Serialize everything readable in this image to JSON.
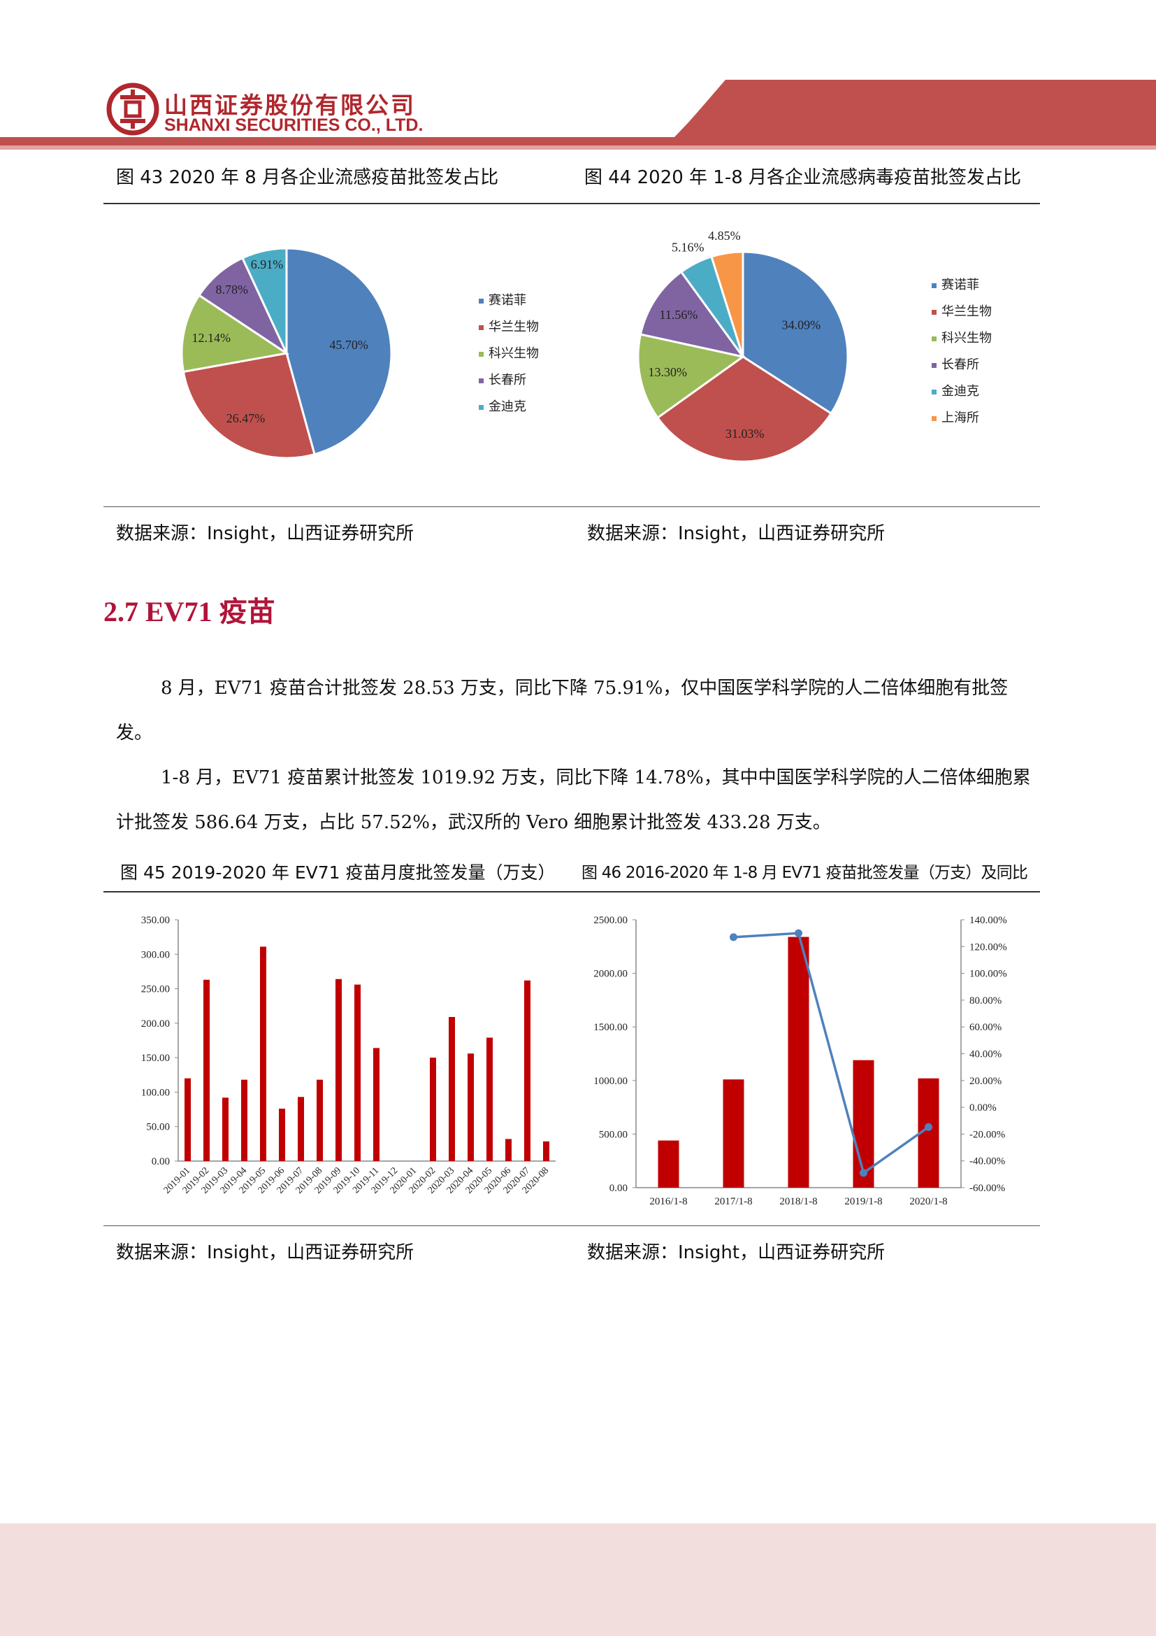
{
  "header": {
    "company_cn": "山西证券股份有限公司",
    "company_en": "SHANXI SECURITIES CO., LTD.",
    "brand_color": "#c0504d"
  },
  "fig43": {
    "title": "图 43 2020 年 8 月各企业流感疫苗批签发占比",
    "source": "数据来源：Insight，山西证券研究所"
  },
  "fig44": {
    "title": "图 44 2020 年 1-8 月各企业流感病毒疫苗批签发占比",
    "source": "数据来源：Insight，山西证券研究所"
  },
  "section": {
    "heading": "2.7 EV71 疫苗",
    "para1": "8 月，EV71 疫苗合计批签发 28.53 万支，同比下降 75.91%，仅中国医学科学院的人二倍体细胞有批签发。",
    "para2": "1-8 月，EV71 疫苗累计批签发 1019.92 万支，同比下降 14.78%，其中中国医学科学院的人二倍体细胞累计批签发 586.64 万支，占比 57.52%，武汉所的 Vero 细胞累计批签发 433.28 万支。"
  },
  "fig45": {
    "title": "图 45 2019-2020 年 EV71 疫苗月度批签发量（万支）",
    "source": "数据来源：Insight，山西证券研究所"
  },
  "fig46": {
    "title": "图 46 2016-2020 年 1-8 月 EV71 疫苗批签发量（万支）及同比",
    "source": "数据来源：Insight，山西证券研究所"
  },
  "chart_data": [
    {
      "type": "pie",
      "labels": [
        "赛诺菲",
        "华兰生物",
        "科兴生物",
        "长春所",
        "金迪克"
      ],
      "values": [
        45.7,
        26.47,
        12.14,
        8.78,
        6.91
      ],
      "value_labels": [
        "45.70%",
        "26.47%",
        "12.14%",
        "8.78%",
        "6.91%"
      ],
      "colors": [
        "#4f81bd",
        "#c0504d",
        "#9bbb59",
        "#8064a2",
        "#4bacc6"
      ],
      "legend": "right"
    },
    {
      "type": "pie",
      "labels": [
        "赛诺菲",
        "华兰生物",
        "科兴生物",
        "长春所",
        "金迪克",
        "上海所"
      ],
      "values": [
        34.09,
        31.03,
        13.3,
        11.56,
        5.16,
        4.85
      ],
      "value_labels": [
        "34.09%",
        "31.03%",
        "13.30%",
        "11.56%",
        "5.16%",
        "4.85%"
      ],
      "colors": [
        "#4f81bd",
        "#c0504d",
        "#9bbb59",
        "#8064a2",
        "#4bacc6",
        "#f79646"
      ],
      "legend": "right"
    },
    {
      "type": "bar",
      "categories": [
        "2019-01",
        "2019-02",
        "2019-03",
        "2019-04",
        "2019-05",
        "2019-06",
        "2019-07",
        "2019-08",
        "2019-09",
        "2019-10",
        "2019-11",
        "2019-12",
        "2020-01",
        "2020-02",
        "2020-03",
        "2020-04",
        "2020-05",
        "2020-06",
        "2020-07",
        "2020-08"
      ],
      "values": [
        120,
        263,
        92,
        118,
        311,
        76,
        93,
        118,
        264,
        256,
        164,
        0,
        0,
        150,
        209,
        156,
        179,
        32,
        262,
        28.53
      ],
      "yticks": [
        "0.00",
        "50.00",
        "100.00",
        "150.00",
        "200.00",
        "250.00",
        "300.00",
        "350.00"
      ],
      "ylim": [
        0,
        350
      ],
      "color": "#c00000"
    },
    {
      "type": "bar",
      "categories": [
        "2016/1-8",
        "2017/1-8",
        "2018/1-8",
        "2019/1-8",
        "2020/1-8"
      ],
      "values": [
        440,
        1010,
        2340,
        1190,
        1019.92
      ],
      "color": "#c00000",
      "yticks": [
        "0.00",
        "500.00",
        "1000.00",
        "1500.00",
        "2000.00",
        "2500.00"
      ],
      "ylim": [
        0,
        2500
      ],
      "line_series": {
        "values": [
          null,
          127,
          130,
          -49,
          -14.78
        ],
        "color": "#4f81bd",
        "yticks": [
          "-60.00%",
          "-40.00%",
          "-20.00%",
          "0.00%",
          "20.00%",
          "40.00%",
          "60.00%",
          "80.00%",
          "100.00%",
          "120.00%",
          "140.00%"
        ],
        "ylim": [
          -60,
          140
        ]
      }
    }
  ]
}
